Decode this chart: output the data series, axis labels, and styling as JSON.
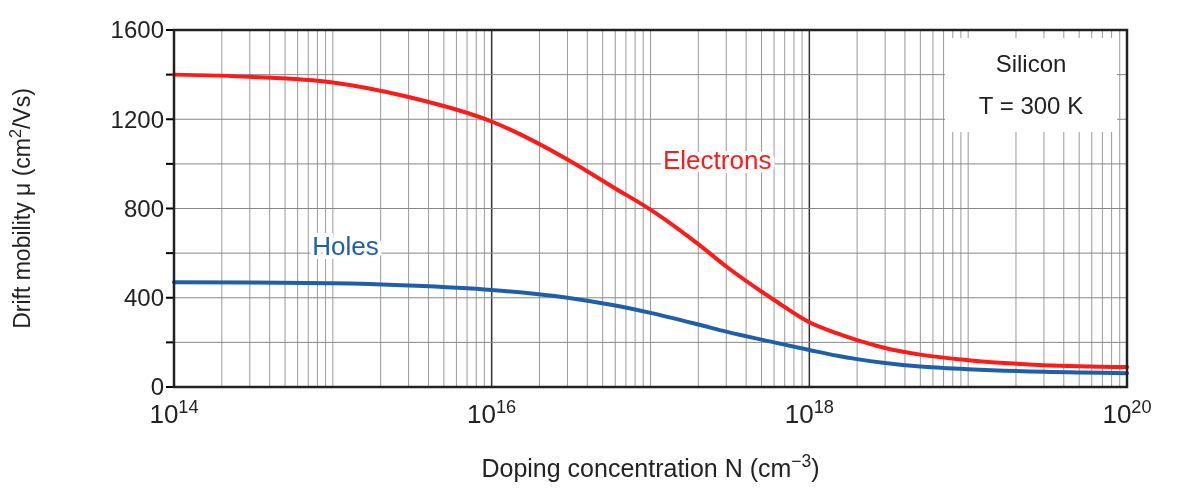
{
  "chart_data": {
    "type": "line",
    "xlabel": "Doping concentration  N  (cm$^{−3}$)",
    "ylabel": "Drift mobility  μ (cm$^{2}$/Vs)",
    "annotations": [
      "Silicon",
      "T = 300 K"
    ],
    "log": "x",
    "grid": true,
    "legend": false,
    "line_style": "solid",
    "marker": "none",
    "xlim": [
      100000000000000.0,
      1e+20
    ],
    "ylim": [
      0,
      1600
    ],
    "xticks": [
      {
        "value": 100000000000000.0,
        "label": "10$^{14}$"
      },
      {
        "value": 200000000000000.0,
        "label": null
      },
      {
        "value": 300000000000000.0,
        "label": null
      },
      {
        "value": 400000000000000.0,
        "label": null
      },
      {
        "value": 500000000000000.0,
        "label": null
      },
      {
        "value": 600000000000000.0,
        "label": null
      },
      {
        "value": 700000000000000.0,
        "label": null
      },
      {
        "value": 800000000000000.0,
        "label": null
      },
      {
        "value": 900000000000000.0,
        "label": null
      },
      {
        "value": 1000000000000000.0,
        "label": null
      },
      {
        "value": 2000000000000000.0,
        "label": null
      },
      {
        "value": 3000000000000000.0,
        "label": null
      },
      {
        "value": 4000000000000000.0,
        "label": null
      },
      {
        "value": 5000000000000000.0,
        "label": null
      },
      {
        "value": 6000000000000000.0,
        "label": null
      },
      {
        "value": 7000000000000000.0,
        "label": null
      },
      {
        "value": 8000000000000000.0,
        "label": null
      },
      {
        "value": 9000000000000000.0,
        "label": null
      },
      {
        "value": 1e+16,
        "label": "10$^{16}$"
      },
      {
        "value": 2e+16,
        "label": null
      },
      {
        "value": 3e+16,
        "label": null
      },
      {
        "value": 4e+16,
        "label": null
      },
      {
        "value": 5e+16,
        "label": null
      },
      {
        "value": 6e+16,
        "label": null
      },
      {
        "value": 7e+16,
        "label": null
      },
      {
        "value": 8e+16,
        "label": null
      },
      {
        "value": 9e+16,
        "label": null
      },
      {
        "value": 1e+17,
        "label": null
      },
      {
        "value": 2e+17,
        "label": null
      },
      {
        "value": 3e+17,
        "label": null
      },
      {
        "value": 4e+17,
        "label": null
      },
      {
        "value": 5e+17,
        "label": null
      },
      {
        "value": 6e+17,
        "label": null
      },
      {
        "value": 7e+17,
        "label": null
      },
      {
        "value": 8e+17,
        "label": null
      },
      {
        "value": 9e+17,
        "label": null
      },
      {
        "value": 1e+18,
        "label": "10$^{18}$"
      },
      {
        "value": 2e+18,
        "label": null
      },
      {
        "value": 3e+18,
        "label": null
      },
      {
        "value": 4e+18,
        "label": null
      },
      {
        "value": 5e+18,
        "label": null
      },
      {
        "value": 6e+18,
        "label": null
      },
      {
        "value": 7e+18,
        "label": null
      },
      {
        "value": 8e+18,
        "label": null
      },
      {
        "value": 9e+18,
        "label": null
      },
      {
        "value": 1e+19,
        "label": null
      },
      {
        "value": 2e+19,
        "label": null
      },
      {
        "value": 3e+19,
        "label": null
      },
      {
        "value": 4e+19,
        "label": null
      },
      {
        "value": 5e+19,
        "label": null
      },
      {
        "value": 6e+19,
        "label": null
      },
      {
        "value": 7e+19,
        "label": null
      },
      {
        "value": 8e+19,
        "label": null
      },
      {
        "value": 9e+19,
        "label": null
      },
      {
        "value": 1e+20,
        "label": "10$^{20}$"
      }
    ],
    "yticks": [
      0,
      {
        "value": 200,
        "label": null
      },
      400,
      {
        "value": 600,
        "label": null
      },
      800,
      {
        "value": 1000,
        "label": null
      },
      1200,
      {
        "value": 1400,
        "label": null
      },
      1600
    ],
    "x": [
      100000000000000.0,
      300000000000000.0,
      1000000000000000.0,
      3000000000000000.0,
      1e+16,
      3e+16,
      6e+16,
      1e+17,
      2e+17,
      3e+17,
      6e+17,
      1e+18,
      1.5e+18,
      2e+18,
      3e+18,
      5e+18,
      1e+19,
      3e+19,
      1e+20
    ],
    "series": [
      {
        "name": "Electrons",
        "color": "#ff1a1a",
        "values": [
          1400,
          1390,
          1365,
          1300,
          1190,
          1020,
          890,
          795,
          640,
          540,
          390,
          290,
          240,
          210,
          175,
          145,
          120,
          98,
          90
        ]
      },
      {
        "name": "Holes",
        "color": "#1f5faa",
        "values": [
          470,
          468,
          465,
          455,
          435,
          400,
          365,
          332,
          280,
          248,
          200,
          166,
          140,
          125,
          108,
          92,
          80,
          68,
          62
        ]
      }
    ]
  }
}
